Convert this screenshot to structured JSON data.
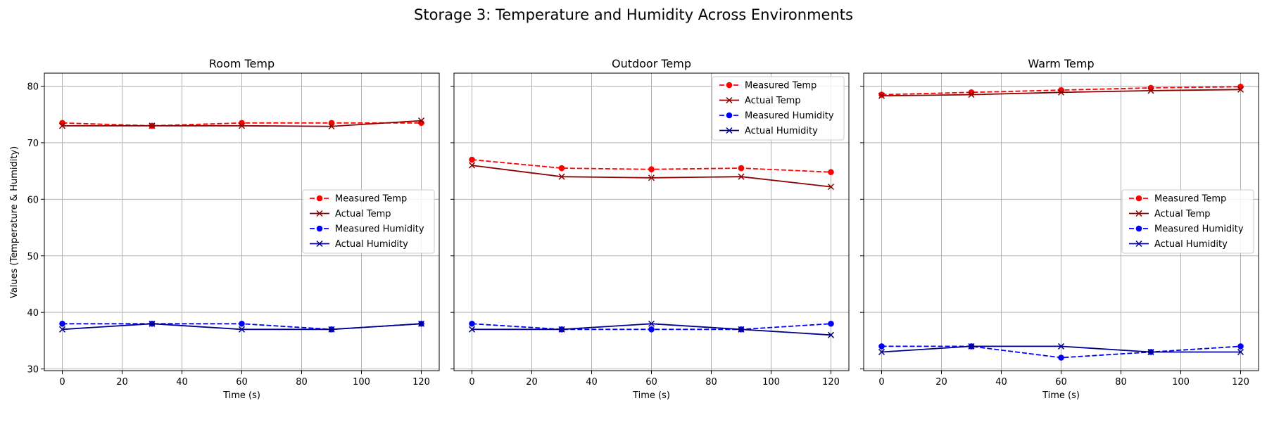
{
  "figure": {
    "title": "Storage 3: Temperature and Humidity Across Environments"
  },
  "shared": {
    "xlabel": "Time (s)",
    "ylabel": "Values (Temperature & Humidity)",
    "xlim": [
      -6,
      126
    ],
    "ylim": [
      29.7,
      82.3
    ],
    "xticks": [
      0,
      20,
      40,
      60,
      80,
      100,
      120
    ],
    "yticks": [
      30,
      40,
      50,
      60,
      70,
      80
    ],
    "grid": true,
    "colors": {
      "measured_temp": "#ff0000",
      "actual_temp": "#8b0000",
      "measured_humidity": "#0000ff",
      "actual_humidity": "#00008b"
    }
  },
  "chart_data": [
    {
      "type": "line",
      "title": "Room Temp",
      "xlabel": "Time (s)",
      "ylabel": "Values (Temperature & Humidity)",
      "xlim": [
        -6,
        126
      ],
      "ylim": [
        29.7,
        82.3
      ],
      "legend_position": "center-right",
      "x": [
        0,
        30,
        60,
        90,
        120
      ],
      "series": [
        {
          "name": "Measured Temp",
          "values": [
            73.5,
            73.0,
            73.5,
            73.5,
            73.5
          ],
          "color": "#ff0000",
          "style": "dashed",
          "marker": "circle"
        },
        {
          "name": "Actual Temp",
          "values": [
            73.0,
            73.0,
            73.0,
            72.9,
            73.9
          ],
          "color": "#8b0000",
          "style": "solid",
          "marker": "x"
        },
        {
          "name": "Measured Humidity",
          "values": [
            38,
            38,
            38,
            37,
            38
          ],
          "color": "#0000ff",
          "style": "dashed",
          "marker": "circle"
        },
        {
          "name": "Actual Humidity",
          "values": [
            37,
            38,
            37,
            37,
            38
          ],
          "color": "#00008b",
          "style": "solid",
          "marker": "x"
        }
      ]
    },
    {
      "type": "line",
      "title": "Outdoor Temp",
      "xlabel": "Time (s)",
      "ylabel": "",
      "xlim": [
        -6,
        126
      ],
      "ylim": [
        29.7,
        82.3
      ],
      "legend_position": "upper-right",
      "x": [
        0,
        30,
        60,
        90,
        120
      ],
      "series": [
        {
          "name": "Measured Temp",
          "values": [
            67.0,
            65.5,
            65.3,
            65.5,
            64.8
          ],
          "color": "#ff0000",
          "style": "dashed",
          "marker": "circle"
        },
        {
          "name": "Actual Temp",
          "values": [
            66.0,
            64.0,
            63.8,
            64.0,
            62.2
          ],
          "color": "#8b0000",
          "style": "solid",
          "marker": "x"
        },
        {
          "name": "Measured Humidity",
          "values": [
            38,
            37,
            37,
            37,
            38
          ],
          "color": "#0000ff",
          "style": "dashed",
          "marker": "circle"
        },
        {
          "name": "Actual Humidity",
          "values": [
            37,
            37,
            38,
            37,
            36
          ],
          "color": "#00008b",
          "style": "solid",
          "marker": "x"
        }
      ]
    },
    {
      "type": "line",
      "title": "Warm Temp",
      "xlabel": "Time (s)",
      "ylabel": "",
      "xlim": [
        -6,
        126
      ],
      "ylim": [
        29.7,
        82.3
      ],
      "legend_position": "center-right",
      "x": [
        0,
        30,
        60,
        90,
        120
      ],
      "series": [
        {
          "name": "Measured Temp",
          "values": [
            78.5,
            78.9,
            79.3,
            79.7,
            79.9
          ],
          "color": "#ff0000",
          "style": "dashed",
          "marker": "circle"
        },
        {
          "name": "Actual Temp",
          "values": [
            78.3,
            78.5,
            78.9,
            79.2,
            79.4
          ],
          "color": "#8b0000",
          "style": "solid",
          "marker": "x"
        },
        {
          "name": "Measured Humidity",
          "values": [
            34,
            34,
            32,
            33,
            34
          ],
          "color": "#0000ff",
          "style": "dashed",
          "marker": "circle"
        },
        {
          "name": "Actual Humidity",
          "values": [
            33,
            34,
            34,
            33,
            33
          ],
          "color": "#00008b",
          "style": "solid",
          "marker": "x"
        }
      ]
    }
  ]
}
